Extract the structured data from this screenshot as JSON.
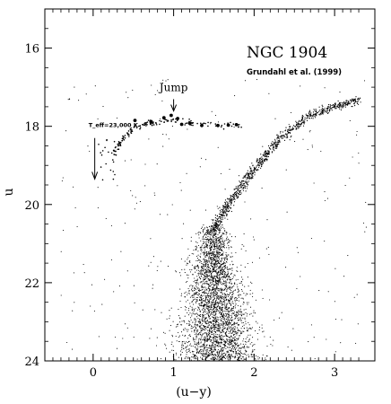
{
  "chart_data": {
    "type": "scatter",
    "title": "NGC 1904",
    "subtitle": "Grundahl et al. (1999)",
    "xlabel": "(u−y)",
    "ylabel": "u",
    "xlim": [
      -0.6,
      3.5
    ],
    "ylim": [
      24,
      15
    ],
    "y_inverted": true,
    "x_ticks": [
      0,
      1,
      2,
      3
    ],
    "y_ticks": [
      16,
      18,
      20,
      22,
      24
    ],
    "grid": false,
    "legend": "none",
    "point_color": "#000000",
    "annotations": [
      {
        "text": "Jump",
        "x": 1.0,
        "y": 17.1,
        "arrow_to": [
          1.0,
          17.7
        ]
      },
      {
        "text": "T_eff=23,000 K",
        "x": 0.25,
        "y": 17.95,
        "arrow_from": [
          0.02,
          18.3
        ],
        "arrow_to": [
          0.02,
          19.35
        ]
      }
    ],
    "sequences": [
      {
        "name": "main-sequence-turnoff",
        "x_range": [
          0.9,
          2.2
        ],
        "y_range": [
          20.6,
          24.0
        ],
        "center": [
          1.52,
          21.7
        ]
      },
      {
        "name": "red-giant-branch",
        "points": [
          [
            1.5,
            20.6
          ],
          [
            1.75,
            19.8
          ],
          [
            2.0,
            19.1
          ],
          [
            2.2,
            18.6
          ],
          [
            2.45,
            18.1
          ],
          [
            2.7,
            17.7
          ],
          [
            3.0,
            17.5
          ],
          [
            3.3,
            17.35
          ]
        ]
      },
      {
        "name": "horizontal-branch",
        "points": [
          [
            0.25,
            18.7
          ],
          [
            0.35,
            18.35
          ],
          [
            0.5,
            18.05
          ],
          [
            0.75,
            17.9
          ],
          [
            1.0,
            17.85
          ],
          [
            1.4,
            17.95
          ],
          [
            1.85,
            18.0
          ]
        ]
      }
    ]
  }
}
